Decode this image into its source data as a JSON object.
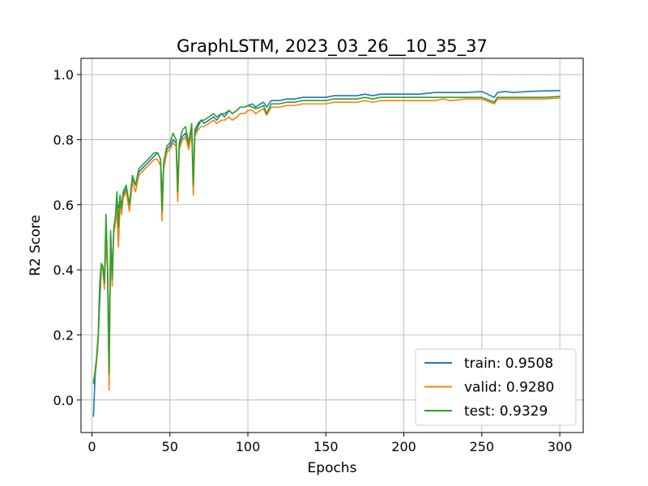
{
  "chart_data": {
    "type": "line",
    "title": "GraphLSTM, 2023_03_26__10_35_37",
    "xlabel": "Epochs",
    "ylabel": "R2 Score",
    "xlim": [
      -7,
      315
    ],
    "ylim": [
      -0.1,
      1.05
    ],
    "xticks": [
      0,
      50,
      100,
      150,
      200,
      250,
      300
    ],
    "yticks": [
      0.0,
      0.2,
      0.4,
      0.6,
      0.8,
      1.0
    ],
    "xtick_labels": [
      "0",
      "50",
      "100",
      "150",
      "200",
      "250",
      "300"
    ],
    "ytick_labels": [
      "0.0",
      "0.2",
      "0.4",
      "0.6",
      "0.8",
      "1.0"
    ],
    "grid": true,
    "legend_position": "lower-right",
    "series": [
      {
        "name": "train: 0.9508",
        "color": "#1f77b4",
        "x": [
          1,
          2,
          3,
          4,
          5,
          6,
          7,
          8,
          9,
          10,
          11,
          12,
          13,
          14,
          15,
          16,
          17,
          18,
          19,
          20,
          22,
          24,
          26,
          28,
          30,
          32,
          34,
          36,
          38,
          40,
          42,
          44,
          45,
          46,
          48,
          50,
          52,
          54,
          55,
          56,
          58,
          60,
          62,
          64,
          65,
          66,
          68,
          70,
          72,
          75,
          78,
          80,
          83,
          85,
          88,
          90,
          93,
          95,
          98,
          100,
          103,
          105,
          108,
          110,
          112,
          115,
          120,
          125,
          130,
          135,
          140,
          145,
          150,
          155,
          160,
          165,
          170,
          175,
          180,
          185,
          190,
          195,
          200,
          210,
          220,
          225,
          230,
          240,
          250,
          258,
          260,
          265,
          270,
          280,
          290,
          300
        ],
        "y": [
          -0.05,
          0.07,
          0.12,
          0.18,
          0.3,
          0.4,
          0.41,
          0.36,
          0.5,
          0.42,
          0.1,
          0.51,
          0.38,
          0.52,
          0.55,
          0.6,
          0.59,
          0.62,
          0.58,
          0.63,
          0.65,
          0.6,
          0.68,
          0.66,
          0.7,
          0.71,
          0.72,
          0.73,
          0.74,
          0.75,
          0.76,
          0.74,
          0.62,
          0.72,
          0.77,
          0.78,
          0.8,
          0.79,
          0.66,
          0.78,
          0.81,
          0.82,
          0.78,
          0.83,
          0.68,
          0.82,
          0.84,
          0.86,
          0.85,
          0.86,
          0.87,
          0.86,
          0.88,
          0.87,
          0.89,
          0.88,
          0.89,
          0.9,
          0.9,
          0.905,
          0.91,
          0.9,
          0.91,
          0.915,
          0.9,
          0.92,
          0.92,
          0.925,
          0.925,
          0.93,
          0.93,
          0.93,
          0.93,
          0.935,
          0.935,
          0.935,
          0.935,
          0.94,
          0.935,
          0.94,
          0.94,
          0.94,
          0.94,
          0.94,
          0.945,
          0.945,
          0.945,
          0.945,
          0.948,
          0.93,
          0.945,
          0.948,
          0.945,
          0.948,
          0.95,
          0.9508
        ]
      },
      {
        "name": "valid: 0.9280",
        "color": "#ff7f0e",
        "x": [
          1,
          2,
          3,
          4,
          5,
          6,
          7,
          8,
          9,
          10,
          11,
          12,
          13,
          14,
          15,
          16,
          17,
          18,
          19,
          20,
          22,
          24,
          26,
          28,
          30,
          32,
          34,
          36,
          38,
          40,
          42,
          44,
          45,
          46,
          48,
          50,
          52,
          54,
          55,
          56,
          58,
          60,
          62,
          64,
          65,
          66,
          68,
          70,
          72,
          75,
          78,
          80,
          83,
          85,
          88,
          90,
          93,
          95,
          98,
          100,
          103,
          105,
          108,
          110,
          112,
          115,
          120,
          125,
          130,
          135,
          140,
          145,
          150,
          155,
          160,
          165,
          170,
          175,
          180,
          185,
          190,
          195,
          200,
          210,
          220,
          225,
          230,
          240,
          250,
          258,
          260,
          265,
          270,
          280,
          290,
          300
        ],
        "y": [
          0.06,
          0.08,
          0.12,
          0.18,
          0.34,
          0.41,
          0.4,
          0.34,
          0.48,
          0.4,
          0.03,
          0.49,
          0.35,
          0.51,
          0.54,
          0.59,
          0.47,
          0.6,
          0.57,
          0.62,
          0.64,
          0.58,
          0.67,
          0.64,
          0.69,
          0.7,
          0.71,
          0.72,
          0.73,
          0.74,
          0.74,
          0.72,
          0.55,
          0.71,
          0.76,
          0.77,
          0.79,
          0.78,
          0.61,
          0.77,
          0.8,
          0.81,
          0.77,
          0.82,
          0.63,
          0.81,
          0.83,
          0.84,
          0.84,
          0.85,
          0.86,
          0.85,
          0.86,
          0.86,
          0.87,
          0.86,
          0.87,
          0.88,
          0.88,
          0.89,
          0.89,
          0.88,
          0.89,
          0.895,
          0.875,
          0.9,
          0.9,
          0.905,
          0.905,
          0.91,
          0.91,
          0.91,
          0.91,
          0.915,
          0.915,
          0.915,
          0.915,
          0.92,
          0.915,
          0.92,
          0.92,
          0.92,
          0.92,
          0.92,
          0.92,
          0.925,
          0.92,
          0.925,
          0.925,
          0.91,
          0.925,
          0.925,
          0.925,
          0.925,
          0.925,
          0.928
        ]
      },
      {
        "name": "test: 0.9329",
        "color": "#2ca02c",
        "x": [
          1,
          2,
          3,
          4,
          5,
          6,
          7,
          8,
          9,
          10,
          11,
          12,
          13,
          14,
          15,
          16,
          17,
          18,
          19,
          20,
          22,
          24,
          26,
          28,
          30,
          32,
          34,
          36,
          38,
          40,
          42,
          44,
          45,
          46,
          48,
          50,
          52,
          54,
          55,
          56,
          58,
          60,
          62,
          64,
          65,
          66,
          68,
          70,
          72,
          75,
          78,
          80,
          83,
          85,
          88,
          90,
          93,
          95,
          98,
          100,
          103,
          105,
          108,
          110,
          112,
          115,
          120,
          125,
          130,
          135,
          140,
          145,
          150,
          155,
          160,
          165,
          170,
          175,
          180,
          185,
          190,
          195,
          200,
          210,
          220,
          225,
          230,
          240,
          250,
          258,
          260,
          265,
          270,
          280,
          290,
          300
        ],
        "y": [
          0.05,
          0.09,
          0.13,
          0.2,
          0.36,
          0.42,
          0.41,
          0.36,
          0.57,
          0.41,
          0.08,
          0.52,
          0.37,
          0.53,
          0.56,
          0.64,
          0.53,
          0.63,
          0.59,
          0.64,
          0.66,
          0.6,
          0.69,
          0.66,
          0.71,
          0.72,
          0.73,
          0.74,
          0.75,
          0.76,
          0.76,
          0.74,
          0.58,
          0.73,
          0.78,
          0.79,
          0.82,
          0.8,
          0.64,
          0.79,
          0.83,
          0.84,
          0.79,
          0.85,
          0.66,
          0.83,
          0.85,
          0.86,
          0.86,
          0.87,
          0.88,
          0.87,
          0.88,
          0.88,
          0.89,
          0.88,
          0.89,
          0.9,
          0.9,
          0.905,
          0.9,
          0.895,
          0.9,
          0.905,
          0.88,
          0.91,
          0.91,
          0.915,
          0.915,
          0.92,
          0.92,
          0.92,
          0.92,
          0.925,
          0.925,
          0.925,
          0.925,
          0.93,
          0.925,
          0.93,
          0.93,
          0.93,
          0.93,
          0.93,
          0.93,
          0.93,
          0.93,
          0.93,
          0.93,
          0.915,
          0.93,
          0.93,
          0.93,
          0.93,
          0.93,
          0.9329
        ]
      }
    ]
  }
}
